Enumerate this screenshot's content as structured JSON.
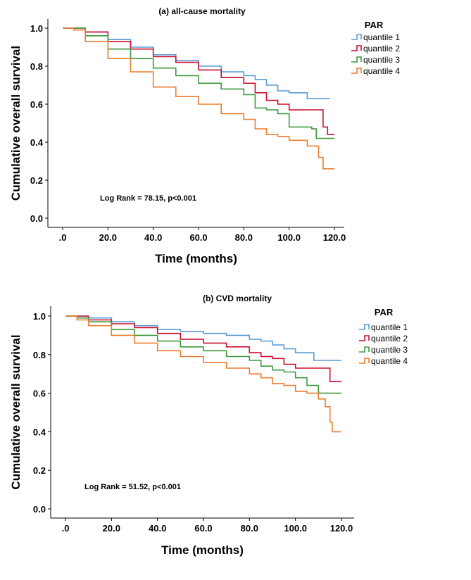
{
  "chart_data": [
    {
      "type": "line",
      "title": "(a) all-cause mortality",
      "xlabel": "Time (months)",
      "ylabel": "Cumulative overall survival",
      "xlim": [
        0,
        120
      ],
      "ylim": [
        0,
        1
      ],
      "x_tick_labels": [
        ".0",
        "20.0",
        "40.0",
        "60.0",
        "80.0",
        "100.0",
        "120.0"
      ],
      "y_tick_labels": [
        "0.0",
        "0.2",
        "0.4",
        "0.6",
        "0.8",
        "1.0"
      ],
      "legend_title": "PAR",
      "annotation": "Log Rank = 78.15, p<0.001",
      "series": [
        {
          "name": "quantile 1",
          "color": "#5b9bd5",
          "points": [
            [
              0,
              1.0
            ],
            [
              5,
              1.0
            ],
            [
              10,
              0.98
            ],
            [
              20,
              0.94
            ],
            [
              30,
              0.9
            ],
            [
              40,
              0.86
            ],
            [
              50,
              0.83
            ],
            [
              60,
              0.8
            ],
            [
              70,
              0.77
            ],
            [
              80,
              0.75
            ],
            [
              85,
              0.73
            ],
            [
              90,
              0.7
            ],
            [
              95,
              0.67
            ],
            [
              100,
              0.66
            ],
            [
              108,
              0.63
            ],
            [
              118,
              0.63
            ]
          ]
        },
        {
          "name": "quantile 2",
          "color": "#c8102e",
          "points": [
            [
              0,
              1.0
            ],
            [
              5,
              1.0
            ],
            [
              10,
              0.98
            ],
            [
              20,
              0.93
            ],
            [
              30,
              0.89
            ],
            [
              40,
              0.85
            ],
            [
              50,
              0.82
            ],
            [
              60,
              0.78
            ],
            [
              70,
              0.74
            ],
            [
              80,
              0.71
            ],
            [
              85,
              0.66
            ],
            [
              90,
              0.62
            ],
            [
              95,
              0.6
            ],
            [
              100,
              0.57
            ],
            [
              110,
              0.57
            ],
            [
              115,
              0.48
            ],
            [
              117,
              0.44
            ],
            [
              120,
              0.44
            ]
          ]
        },
        {
          "name": "quantile 3",
          "color": "#3c9a3c",
          "points": [
            [
              0,
              1.0
            ],
            [
              5,
              1.0
            ],
            [
              10,
              0.96
            ],
            [
              20,
              0.89
            ],
            [
              30,
              0.84
            ],
            [
              40,
              0.79
            ],
            [
              50,
              0.75
            ],
            [
              60,
              0.71
            ],
            [
              70,
              0.68
            ],
            [
              80,
              0.65
            ],
            [
              85,
              0.58
            ],
            [
              90,
              0.57
            ],
            [
              95,
              0.55
            ],
            [
              100,
              0.48
            ],
            [
              110,
              0.47
            ],
            [
              112,
              0.42
            ],
            [
              120,
              0.42
            ]
          ]
        },
        {
          "name": "quantile 4",
          "color": "#ed7d31",
          "points": [
            [
              0,
              1.0
            ],
            [
              5,
              0.99
            ],
            [
              10,
              0.93
            ],
            [
              20,
              0.84
            ],
            [
              30,
              0.77
            ],
            [
              40,
              0.69
            ],
            [
              50,
              0.64
            ],
            [
              60,
              0.6
            ],
            [
              70,
              0.55
            ],
            [
              80,
              0.52
            ],
            [
              85,
              0.47
            ],
            [
              90,
              0.44
            ],
            [
              95,
              0.43
            ],
            [
              100,
              0.41
            ],
            [
              108,
              0.38
            ],
            [
              113,
              0.32
            ],
            [
              115,
              0.26
            ],
            [
              120,
              0.26
            ]
          ]
        }
      ]
    },
    {
      "type": "line",
      "title": "(b) CVD mortality",
      "xlabel": "Time (months)",
      "ylabel": "Cumulative overall survival",
      "xlim": [
        0,
        120
      ],
      "ylim": [
        0,
        1
      ],
      "x_tick_labels": [
        ".0",
        "20.0",
        "40.0",
        "60.0",
        "80.0",
        "100.0",
        "120.0"
      ],
      "y_tick_labels": [
        "0.0",
        "0.2",
        "0.4",
        "0.6",
        "0.8",
        "1.0"
      ],
      "legend_title": "PAR",
      "annotation": "Log Rank = 51.52, p<0.001",
      "series": [
        {
          "name": "quantile 1",
          "color": "#5b9bd5",
          "points": [
            [
              0,
              1.0
            ],
            [
              5,
              1.0
            ],
            [
              10,
              0.99
            ],
            [
              20,
              0.97
            ],
            [
              30,
              0.95
            ],
            [
              40,
              0.93
            ],
            [
              50,
              0.92
            ],
            [
              60,
              0.91
            ],
            [
              70,
              0.9
            ],
            [
              80,
              0.88
            ],
            [
              85,
              0.87
            ],
            [
              90,
              0.85
            ],
            [
              95,
              0.83
            ],
            [
              100,
              0.81
            ],
            [
              108,
              0.77
            ],
            [
              120,
              0.77
            ]
          ]
        },
        {
          "name": "quantile 2",
          "color": "#c8102e",
          "points": [
            [
              0,
              1.0
            ],
            [
              5,
              1.0
            ],
            [
              10,
              0.98
            ],
            [
              20,
              0.96
            ],
            [
              30,
              0.94
            ],
            [
              40,
              0.91
            ],
            [
              50,
              0.88
            ],
            [
              60,
              0.86
            ],
            [
              70,
              0.84
            ],
            [
              80,
              0.81
            ],
            [
              85,
              0.79
            ],
            [
              90,
              0.78
            ],
            [
              95,
              0.75
            ],
            [
              100,
              0.73
            ],
            [
              110,
              0.73
            ],
            [
              115,
              0.66
            ],
            [
              120,
              0.66
            ]
          ]
        },
        {
          "name": "quantile 3",
          "color": "#3c9a3c",
          "points": [
            [
              0,
              1.0
            ],
            [
              5,
              0.99
            ],
            [
              10,
              0.97
            ],
            [
              20,
              0.93
            ],
            [
              30,
              0.9
            ],
            [
              40,
              0.87
            ],
            [
              50,
              0.84
            ],
            [
              60,
              0.82
            ],
            [
              70,
              0.79
            ],
            [
              80,
              0.77
            ],
            [
              85,
              0.74
            ],
            [
              90,
              0.72
            ],
            [
              95,
              0.71
            ],
            [
              100,
              0.68
            ],
            [
              105,
              0.64
            ],
            [
              110,
              0.6
            ],
            [
              120,
              0.6
            ]
          ]
        },
        {
          "name": "quantile 4",
          "color": "#ed7d31",
          "points": [
            [
              0,
              1.0
            ],
            [
              5,
              0.98
            ],
            [
              10,
              0.95
            ],
            [
              20,
              0.9
            ],
            [
              30,
              0.86
            ],
            [
              40,
              0.82
            ],
            [
              50,
              0.79
            ],
            [
              60,
              0.76
            ],
            [
              70,
              0.73
            ],
            [
              80,
              0.7
            ],
            [
              85,
              0.68
            ],
            [
              90,
              0.65
            ],
            [
              95,
              0.64
            ],
            [
              100,
              0.61
            ],
            [
              105,
              0.6
            ],
            [
              110,
              0.57
            ],
            [
              113,
              0.53
            ],
            [
              115,
              0.45
            ],
            [
              116,
              0.4
            ],
            [
              120,
              0.4
            ]
          ]
        }
      ]
    }
  ]
}
